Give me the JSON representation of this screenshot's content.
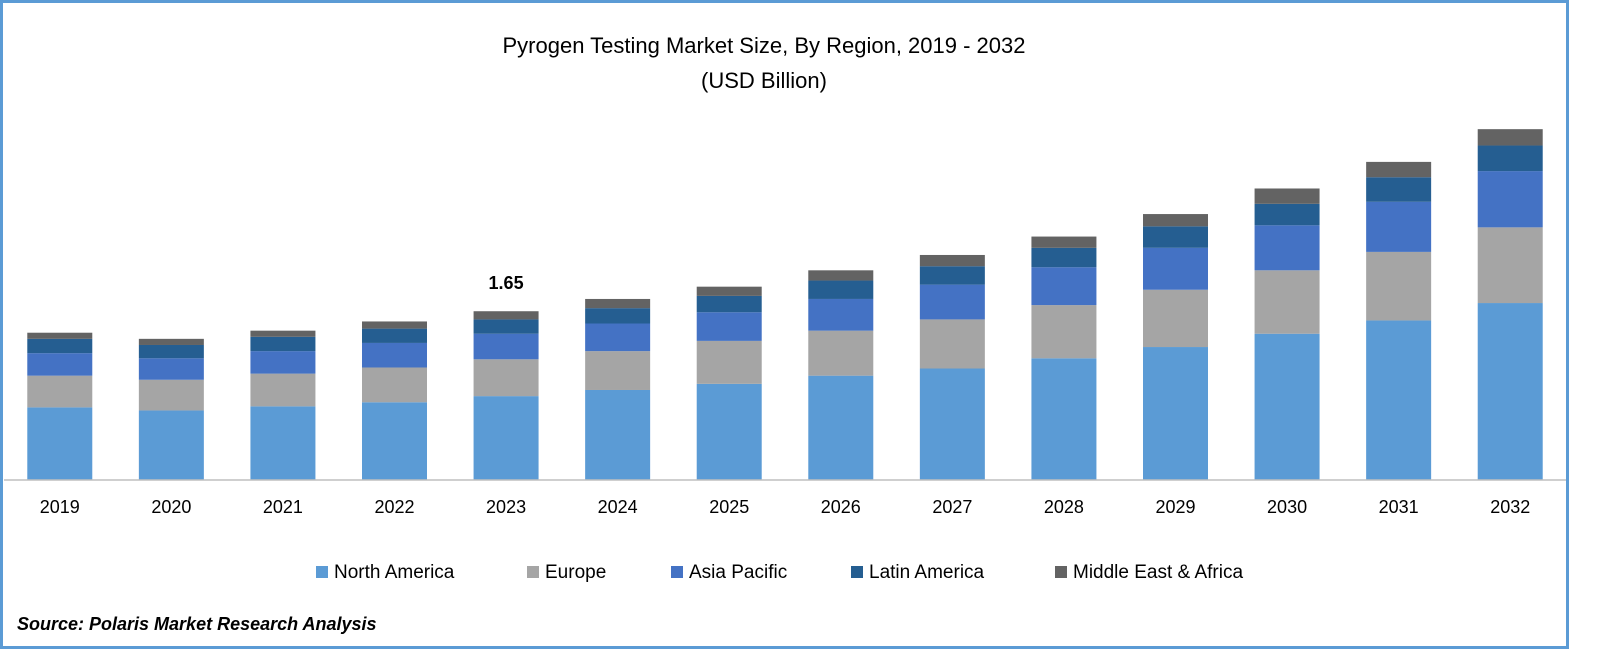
{
  "chart_data": {
    "type": "stacked_bar",
    "title": "Pyrogen Testing Market Size, By Region, 2019 - 2032",
    "subtitle": "(USD Billion)",
    "categories": [
      "2019",
      "2020",
      "2021",
      "2022",
      "2023",
      "2024",
      "2025",
      "2026",
      "2027",
      "2028",
      "2029",
      "2030",
      "2031",
      "2032"
    ],
    "series": [
      {
        "name": "North America",
        "color": "#5b9bd5",
        "values": [
          0.71,
          0.68,
          0.72,
          0.76,
          0.82,
          0.88,
          0.94,
          1.02,
          1.09,
          1.19,
          1.3,
          1.43,
          1.56,
          1.73
        ]
      },
      {
        "name": "Europe",
        "color": "#a5a5a5",
        "values": [
          0.31,
          0.3,
          0.32,
          0.34,
          0.36,
          0.38,
          0.42,
          0.44,
          0.48,
          0.52,
          0.56,
          0.62,
          0.67,
          0.74
        ]
      },
      {
        "name": "Asia Pacific",
        "color": "#4472c4",
        "values": [
          0.22,
          0.21,
          0.22,
          0.24,
          0.25,
          0.27,
          0.28,
          0.31,
          0.34,
          0.37,
          0.41,
          0.44,
          0.49,
          0.55
        ]
      },
      {
        "name": "Latin America",
        "color": "#255e91",
        "values": [
          0.14,
          0.13,
          0.14,
          0.14,
          0.14,
          0.15,
          0.16,
          0.18,
          0.18,
          0.19,
          0.21,
          0.21,
          0.24,
          0.25
        ]
      },
      {
        "name": "Middle East & Africa",
        "color": "#636363",
        "values": [
          0.06,
          0.06,
          0.06,
          0.07,
          0.08,
          0.09,
          0.09,
          0.1,
          0.11,
          0.11,
          0.12,
          0.15,
          0.15,
          0.16
        ]
      }
    ],
    "data_label": {
      "category": "2023",
      "value": 1.65
    },
    "ylim": [
      0,
      3.5
    ],
    "legend": "bottom",
    "source": "Source: Polaris Market Research Analysis"
  }
}
